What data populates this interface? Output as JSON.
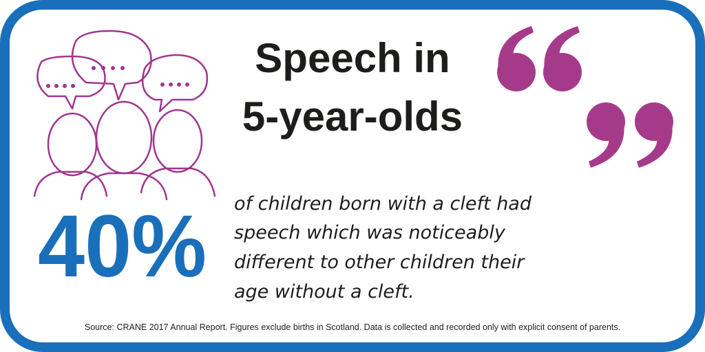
{
  "title_lines": [
    "Speech in",
    "5-year-olds"
  ],
  "statistic": "40%",
  "description_lines": [
    "of children born with a cleft had",
    "speech which was noticeably",
    "different to other children their",
    "age without a cleft."
  ],
  "source": "Source: CRANE 2017 Annual Report. Figures exclude births in Scotland. Data is collected and recorded only with explicit consent of parents."
}
